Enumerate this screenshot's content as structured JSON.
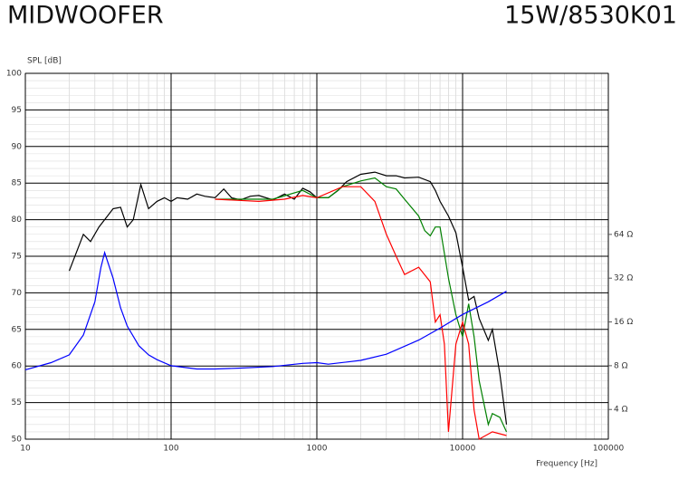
{
  "chart_data": {
    "type": "line",
    "title": "MIDWOOFER",
    "subtitle": "15W/8530K01",
    "y_label": "SPL [dB]",
    "x_label": "Frequency [Hz]",
    "xscale": "log",
    "y2scale": "log",
    "grid": true,
    "minor_grid": true,
    "xlim": [
      10,
      100000
    ],
    "xticks": [
      10,
      100,
      1000,
      10000,
      100000
    ],
    "ylim": [
      50,
      100
    ],
    "yticks": [
      50,
      55,
      60,
      65,
      70,
      75,
      80,
      85,
      90,
      95,
      100
    ],
    "y2lim": [
      2.5,
      820
    ],
    "y2ticks": [
      {
        "value": 4,
        "label": "4 Ω"
      },
      {
        "value": 8,
        "label": "8 Ω"
      },
      {
        "value": 16,
        "label": "16 Ω"
      },
      {
        "value": 32,
        "label": "32 Ω"
      },
      {
        "value": 64,
        "label": "64 Ω"
      }
    ],
    "series": [
      {
        "color": "#000000",
        "x": [
          20,
          25,
          28,
          32,
          35,
          40,
          45,
          50,
          55,
          62,
          70,
          80,
          90,
          100,
          110,
          130,
          150,
          170,
          200,
          230,
          260,
          300,
          350,
          400,
          500,
          600,
          700,
          800,
          900,
          1000,
          1200,
          1400,
          1600,
          2000,
          2500,
          3000,
          3500,
          4000,
          5000,
          6000,
          6500,
          7000,
          8000,
          9000,
          10000,
          11000,
          12000,
          13000,
          15000,
          16000,
          18000,
          20000
        ],
        "values": [
          73,
          78,
          77,
          79,
          80,
          81.5,
          81.7,
          79,
          80,
          84.8,
          81.5,
          82.5,
          83,
          82.5,
          83,
          82.8,
          83.5,
          83.2,
          83,
          84.2,
          83,
          82.7,
          83.2,
          83.3,
          82.7,
          83.5,
          82.8,
          84.3,
          83.8,
          83,
          83,
          84,
          85.2,
          86.2,
          86.5,
          86,
          86,
          85.7,
          85.8,
          85.2,
          84,
          82.5,
          80.5,
          78.2,
          73.5,
          69,
          69.5,
          66.5,
          63.5,
          65,
          59,
          52
        ]
      },
      {
        "color": "#008000",
        "x": [
          200,
          300,
          500,
          800,
          1000,
          1200,
          1500,
          2000,
          2500,
          3000,
          3500,
          4000,
          5000,
          5500,
          6000,
          6500,
          7000,
          8000,
          9000,
          10000,
          11000,
          12000,
          13000,
          15000,
          16000,
          18000,
          20000
        ],
        "values": [
          82.8,
          82.8,
          82.8,
          84,
          83,
          83,
          84.5,
          85.3,
          85.7,
          84.5,
          84.2,
          82.8,
          80.5,
          78.5,
          77.8,
          79,
          79,
          72,
          67,
          64,
          68.5,
          64,
          58,
          52,
          53.5,
          53,
          51
        ]
      },
      {
        "color": "#ff0000",
        "x": [
          200,
          400,
          600,
          800,
          1000,
          1500,
          2000,
          2500,
          3000,
          3500,
          4000,
          5000,
          6000,
          6500,
          7000,
          7500,
          8000,
          9000,
          10000,
          11000,
          12000,
          13000,
          16000,
          20000
        ],
        "values": [
          82.8,
          82.5,
          82.8,
          83.3,
          83,
          84.5,
          84.5,
          82.5,
          78,
          75,
          72.5,
          73.5,
          71.5,
          66,
          67,
          63,
          51,
          63,
          66,
          63,
          54,
          50,
          51,
          50.5
        ]
      },
      {
        "color": "#0000ff",
        "axis": "y2",
        "x": [
          10,
          15,
          20,
          25,
          30,
          33,
          35,
          40,
          45,
          50,
          60,
          70,
          80,
          100,
          150,
          200,
          300,
          500,
          800,
          1000,
          1200,
          2000,
          3000,
          5000,
          7000,
          10000,
          15000,
          20000
        ],
        "values": [
          7.5,
          8.4,
          9.5,
          13,
          22,
          38,
          48,
          32,
          20,
          15,
          11,
          9.5,
          8.8,
          8,
          7.6,
          7.6,
          7.7,
          7.9,
          8.3,
          8.4,
          8.2,
          8.7,
          9.6,
          12,
          14.5,
          18,
          22,
          26
        ]
      }
    ]
  }
}
